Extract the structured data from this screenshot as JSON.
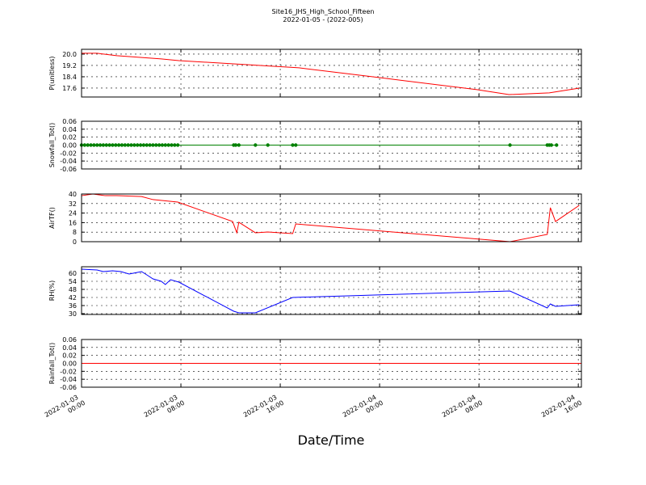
{
  "header": {
    "title": "Site16_JHS_High_School_Fifteen",
    "subtitle": "2022-01-05 - (2022-005)"
  },
  "xaxis": {
    "label": "Date/Time",
    "xlim": [
      "2022-01-03 00:00",
      "2022-01-04 16:15"
    ],
    "xticks": [
      "2022-01-03 00:00",
      "2022-01-03 08:00",
      "2022-01-03 16:00",
      "2022-01-04 00:00",
      "2022-01-04 08:00",
      "2022-01-04 16:00"
    ]
  },
  "chart_data": [
    {
      "type": "line",
      "ylabel": "P(unitless)",
      "color": "#ff0000",
      "grid": true,
      "ylim": [
        16.97,
        20.34
      ],
      "yticks": [
        {
          "value": 20,
          "label": "20.0"
        },
        19.2,
        18.4,
        17.6
      ],
      "x": [
        "2022-01-03 00:00",
        "2022-01-03 01:15",
        "2022-01-03 02:50",
        "2022-01-03 06:25",
        "2022-01-03 07:50",
        "2022-01-03 12:15",
        "2022-01-03 17:30",
        "2022-01-04 00:00",
        "2022-01-04 07:50",
        "2022-01-04 10:25",
        "2022-01-04 13:40",
        "2022-01-04 16:05"
      ],
      "values": [
        20.06,
        20.06,
        19.89,
        19.66,
        19.54,
        19.31,
        19.03,
        18.34,
        17.49,
        17.14,
        17.26,
        17.6
      ]
    },
    {
      "type": "line",
      "ylabel": "Snowfall_Tot()",
      "color": "#008000",
      "marker": true,
      "grid": true,
      "ylim": [
        -0.06,
        0.06
      ],
      "yticks": [
        0.06,
        0.04,
        0.02,
        {
          "value": 0,
          "label": "0.00"
        },
        -0.02,
        -0.04,
        -0.06
      ],
      "x": [
        "2022-01-03 00:00",
        "2022-01-03 00:15",
        "2022-01-03 00:30",
        "2022-01-03 00:45",
        "2022-01-03 01:00",
        "2022-01-03 01:15",
        "2022-01-03 01:30",
        "2022-01-03 01:45",
        "2022-01-03 02:00",
        "2022-01-03 02:15",
        "2022-01-03 02:30",
        "2022-01-03 02:45",
        "2022-01-03 03:00",
        "2022-01-03 03:15",
        "2022-01-03 03:30",
        "2022-01-03 03:45",
        "2022-01-03 04:00",
        "2022-01-03 04:15",
        "2022-01-03 04:30",
        "2022-01-03 04:45",
        "2022-01-03 05:00",
        "2022-01-03 05:15",
        "2022-01-03 05:30",
        "2022-01-03 05:45",
        "2022-01-03 06:00",
        "2022-01-03 06:15",
        "2022-01-03 06:30",
        "2022-01-03 06:45",
        "2022-01-03 07:00",
        "2022-01-03 07:15",
        "2022-01-03 07:30",
        "2022-01-03 07:45",
        "2022-01-03 12:15",
        "2022-01-03 12:25",
        "2022-01-03 12:40",
        "2022-01-03 14:00",
        "2022-01-03 15:00",
        "2022-01-03 17:00",
        "2022-01-03 17:15",
        "2022-01-04 10:30",
        "2022-01-04 13:30",
        "2022-01-04 13:40",
        "2022-01-04 13:50",
        "2022-01-04 14:15"
      ],
      "values": [
        0,
        0,
        0,
        0,
        0,
        0,
        0,
        0,
        0,
        0,
        0,
        0,
        0,
        0,
        0,
        0,
        0,
        0,
        0,
        0,
        0,
        0,
        0,
        0,
        0,
        0,
        0,
        0,
        0,
        0,
        0,
        0,
        0,
        0,
        0,
        0,
        0,
        0,
        0,
        0,
        0,
        0,
        0,
        0
      ]
    },
    {
      "type": "line",
      "ylabel": "AirTF()",
      "color": "#ff0000",
      "grid": true,
      "ylim": [
        0,
        40
      ],
      "yticks": [
        40,
        32,
        24,
        16,
        8,
        0
      ],
      "x": [
        "2022-01-03 00:00",
        "2022-01-03 00:55",
        "2022-01-03 01:55",
        "2022-01-03 02:50",
        "2022-01-03 04:50",
        "2022-01-03 05:45",
        "2022-01-03 07:45",
        "2022-01-03 12:10",
        "2022-01-03 12:30",
        "2022-01-03 12:40",
        "2022-01-03 14:00",
        "2022-01-03 15:00",
        "2022-01-03 17:00",
        "2022-01-03 17:15",
        "2022-01-04 10:30",
        "2022-01-04 13:30",
        "2022-01-04 13:45",
        "2022-01-04 14:10",
        "2022-01-04 16:05"
      ],
      "values": [
        38.6,
        40,
        38.6,
        38.6,
        37.9,
        35.3,
        33.2,
        16.9,
        7.5,
        16.3,
        7.5,
        8.1,
        6.8,
        14.9,
        0,
        6.1,
        28.5,
        16.9,
        30.5
      ]
    },
    {
      "type": "line",
      "ylabel": "RH(%)",
      "color": "#0000ff",
      "grid": true,
      "ylim": [
        29.4,
        64.8
      ],
      "yticks": [
        60,
        54,
        48,
        42,
        36,
        30
      ],
      "x": [
        "2022-01-03 00:00",
        "2022-01-03 01:15",
        "2022-01-03 01:45",
        "2022-01-03 02:30",
        "2022-01-03 03:10",
        "2022-01-03 03:50",
        "2022-01-03 04:30",
        "2022-01-03 04:50",
        "2022-01-03 05:15",
        "2022-01-03 05:45",
        "2022-01-03 06:25",
        "2022-01-03 06:45",
        "2022-01-03 07:10",
        "2022-01-03 07:50",
        "2022-01-03 12:15",
        "2022-01-03 12:40",
        "2022-01-03 14:00",
        "2022-01-03 17:00",
        "2022-01-04 10:30",
        "2022-01-04 13:30",
        "2022-01-04 13:45",
        "2022-01-04 14:10",
        "2022-01-04 16:05"
      ],
      "values": [
        63,
        62.4,
        61.2,
        61.8,
        61.2,
        59.4,
        60.6,
        61.2,
        58.8,
        55.8,
        54,
        51.6,
        55.2,
        53.4,
        31.8,
        30.6,
        30.6,
        42,
        46.8,
        34.2,
        37.2,
        35.4,
        36.6
      ]
    },
    {
      "type": "line",
      "ylabel": "Rainfall_Tot()",
      "color": "#ff0000",
      "grid": true,
      "ylim": [
        -0.06,
        0.06
      ],
      "yticks": [
        0.06,
        0.04,
        0.02,
        {
          "value": 0,
          "label": "0.00"
        },
        -0.02,
        -0.04,
        -0.06
      ],
      "x": [
        "2022-01-03 00:00",
        "2022-01-04 16:15"
      ],
      "values": [
        0,
        0
      ]
    }
  ]
}
